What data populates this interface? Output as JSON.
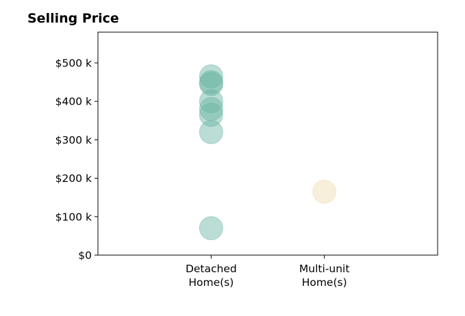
{
  "chart_data": {
    "type": "scatter",
    "title": "Selling Price",
    "xlabel": "",
    "ylabel": "",
    "categories": [
      "Detached Home(s)",
      "Multi-unit Home(s)"
    ],
    "category_label_lines": [
      [
        "Detached",
        "Home(s)"
      ],
      [
        "Multi-unit",
        "Home(s)"
      ]
    ],
    "xlim": [
      0,
      3
    ],
    "ylim": [
      0,
      580000
    ],
    "y_ticks": [
      0,
      100000,
      200000,
      300000,
      400000,
      500000
    ],
    "y_tick_labels": [
      "$0",
      "$100 k",
      "$200 k",
      "$300 k",
      "$400 k",
      "$500 k"
    ],
    "grid": false,
    "legend": "none",
    "series": [
      {
        "category": "Detached Home(s)",
        "color": "#69b3a2",
        "values": [
          465000,
          450000,
          445000,
          400000,
          380000,
          365000,
          320000,
          70000
        ]
      },
      {
        "category": "Multi-unit Home(s)",
        "color": "#f0dbae",
        "values": [
          165000
        ]
      }
    ]
  }
}
